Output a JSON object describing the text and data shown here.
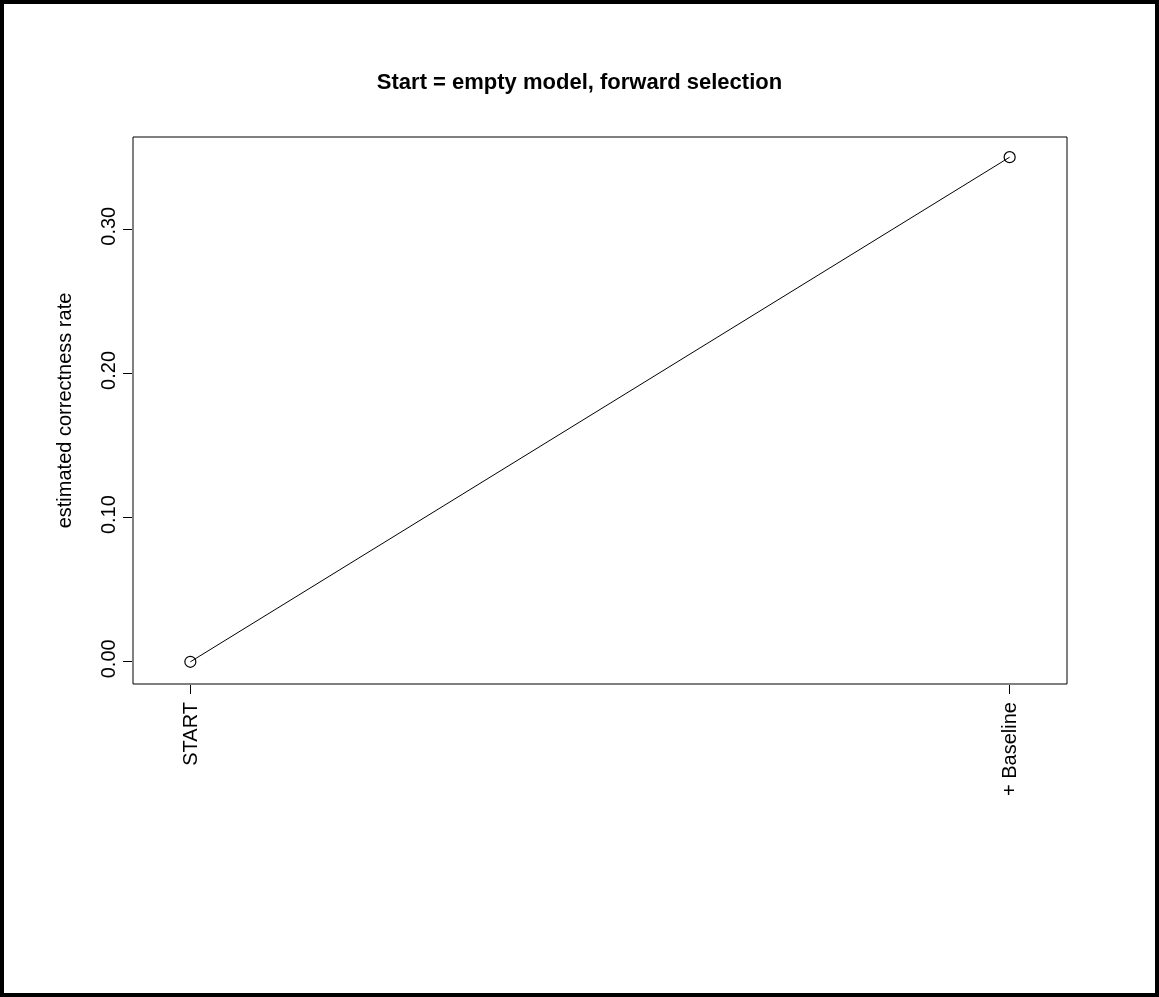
{
  "chart_data": {
    "type": "line",
    "title": "Start = empty model, forward selection",
    "ylabel": "estimated correctness rate",
    "categories": [
      "START",
      "+ Baseline"
    ],
    "series": [
      {
        "color": "#000000",
        "values": [
          0,
          0.35
        ]
      }
    ],
    "ylim": [
      -0.0154,
      0.364
    ],
    "yticks": [
      {
        "value": 0,
        "label": "0.00"
      },
      {
        "value": 0.1,
        "label": "0.10"
      },
      {
        "value": 0.2,
        "label": "0.20"
      },
      {
        "value": 0.3,
        "label": "0.30"
      }
    ],
    "grid": false,
    "marker": "circle",
    "line_style": "solid"
  }
}
